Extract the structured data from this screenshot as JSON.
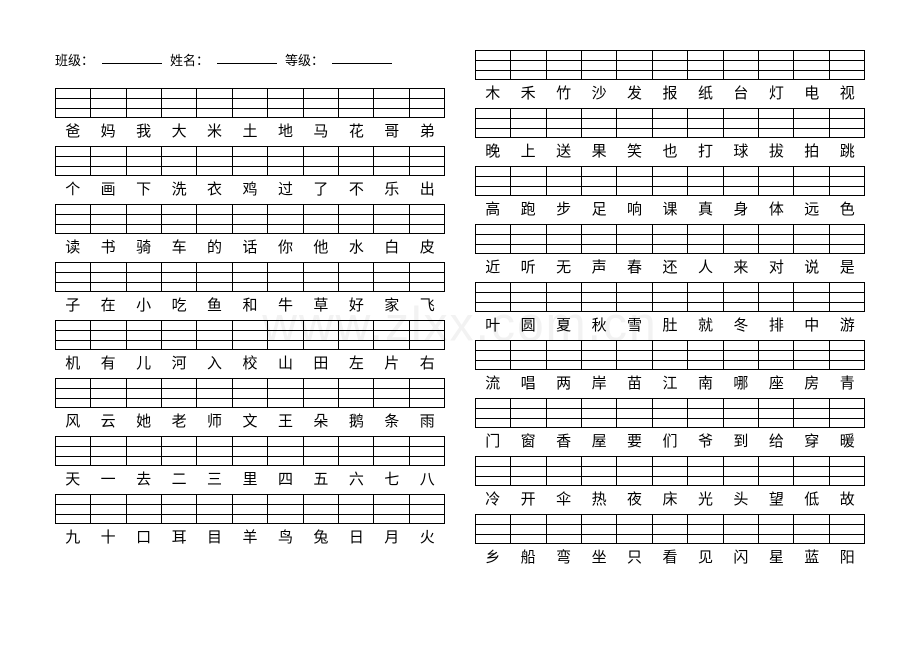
{
  "header": {
    "class_label": "班级：",
    "name_label": "姓名：",
    "grade_label": "等级："
  },
  "columns": [
    {
      "has_header": true,
      "rows": [
        [
          "爸",
          "妈",
          "我",
          "大",
          "米",
          "土",
          "地",
          "马",
          "花",
          "哥",
          "弟"
        ],
        [
          "个",
          "画",
          "下",
          "洗",
          "衣",
          "鸡",
          "过",
          "了",
          "不",
          "乐",
          "出"
        ],
        [
          "读",
          "书",
          "骑",
          "车",
          "的",
          "话",
          "你",
          "他",
          "水",
          "白",
          "皮"
        ],
        [
          "子",
          "在",
          "小",
          "吃",
          "鱼",
          "和",
          "牛",
          "草",
          "好",
          "家",
          "飞"
        ],
        [
          "机",
          "有",
          "儿",
          "河",
          "入",
          "校",
          "山",
          "田",
          "左",
          "片",
          "右"
        ],
        [
          "风",
          "云",
          "她",
          "老",
          "师",
          "文",
          "王",
          "朵",
          "鹅",
          "条",
          "雨"
        ],
        [
          "天",
          "一",
          "去",
          "二",
          "三",
          "里",
          "四",
          "五",
          "六",
          "七",
          "八"
        ],
        [
          "九",
          "十",
          "口",
          "耳",
          "目",
          "羊",
          "鸟",
          "兔",
          "日",
          "月",
          "火"
        ]
      ]
    },
    {
      "has_header": false,
      "rows": [
        [
          "木",
          "禾",
          "竹",
          "沙",
          "发",
          "报",
          "纸",
          "台",
          "灯",
          "电",
          "视"
        ],
        [
          "晚",
          "上",
          "送",
          "果",
          "笑",
          "也",
          "打",
          "球",
          "拔",
          "拍",
          "跳"
        ],
        [
          "高",
          "跑",
          "步",
          "足",
          "响",
          "课",
          "真",
          "身",
          "体",
          "远",
          "色"
        ],
        [
          "近",
          "听",
          "无",
          "声",
          "春",
          "还",
          "人",
          "来",
          "对",
          "说",
          "是"
        ],
        [
          "叶",
          "圆",
          "夏",
          "秋",
          "雪",
          "肚",
          "就",
          "冬",
          "排",
          "中",
          "游"
        ],
        [
          "流",
          "唱",
          "两",
          "岸",
          "苗",
          "江",
          "南",
          "哪",
          "座",
          "房",
          "青"
        ],
        [
          "门",
          "窗",
          "香",
          "屋",
          "要",
          "们",
          "爷",
          "到",
          "给",
          "穿",
          "暖"
        ],
        [
          "冷",
          "开",
          "伞",
          "热",
          "夜",
          "床",
          "光",
          "头",
          "望",
          "低",
          "故"
        ],
        [
          "乡",
          "船",
          "弯",
          "坐",
          "只",
          "看",
          "见",
          "闪",
          "星",
          "蓝",
          "阳"
        ]
      ]
    }
  ],
  "cells_per_row": 11,
  "watermark": "www.zlxx.com.cn"
}
